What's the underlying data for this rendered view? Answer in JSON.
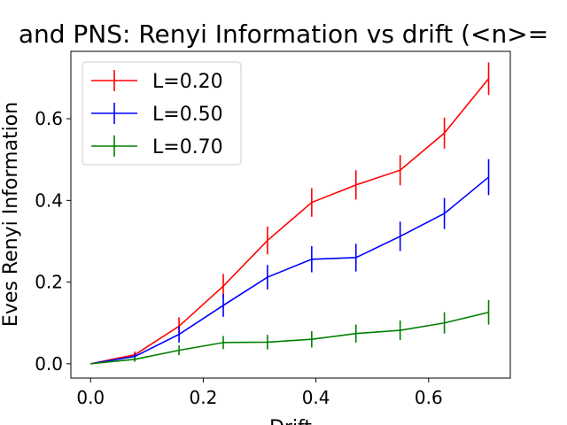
{
  "chart_data": {
    "type": "line",
    "title": "and PNS: Renyi Information vs drift (<n>=",
    "xlabel": "Drift",
    "ylabel": "Eves Renyi Information",
    "xlim": [
      -0.035,
      0.745
    ],
    "ylim": [
      -0.035,
      0.765
    ],
    "xticks": [
      0.0,
      0.2,
      0.4,
      0.6
    ],
    "xtick_labels": [
      "0.0",
      "0.2",
      "0.4",
      "0.6"
    ],
    "yticks": [
      0.0,
      0.2,
      0.4,
      0.6
    ],
    "ytick_labels": [
      "0.0",
      "0.2",
      "0.4",
      "0.6"
    ],
    "grid": false,
    "legend_position": "top-left",
    "x": [
      0.0,
      0.0785,
      0.157,
      0.2355,
      0.314,
      0.3925,
      0.471,
      0.5495,
      0.628,
      0.7065
    ],
    "series": [
      {
        "name": "L=0.20",
        "color": "#ff0000",
        "values": [
          0.0,
          0.022,
          0.092,
          0.19,
          0.302,
          0.395,
          0.438,
          0.474,
          0.565,
          0.698
        ],
        "errors": [
          0.0,
          0.008,
          0.022,
          0.03,
          0.034,
          0.035,
          0.036,
          0.037,
          0.038,
          0.04
        ]
      },
      {
        "name": "L=0.50",
        "color": "#0000ff",
        "values": [
          0.0,
          0.018,
          0.072,
          0.143,
          0.212,
          0.256,
          0.26,
          0.312,
          0.368,
          0.457
        ],
        "errors": [
          0.0,
          0.008,
          0.02,
          0.028,
          0.03,
          0.032,
          0.034,
          0.036,
          0.038,
          0.044
        ]
      },
      {
        "name": "L=0.70",
        "color": "#008000",
        "values": [
          0.0,
          0.011,
          0.033,
          0.052,
          0.053,
          0.06,
          0.074,
          0.082,
          0.1,
          0.126
        ],
        "errors": [
          0.0,
          0.006,
          0.012,
          0.016,
          0.018,
          0.02,
          0.022,
          0.024,
          0.026,
          0.03
        ]
      }
    ]
  }
}
